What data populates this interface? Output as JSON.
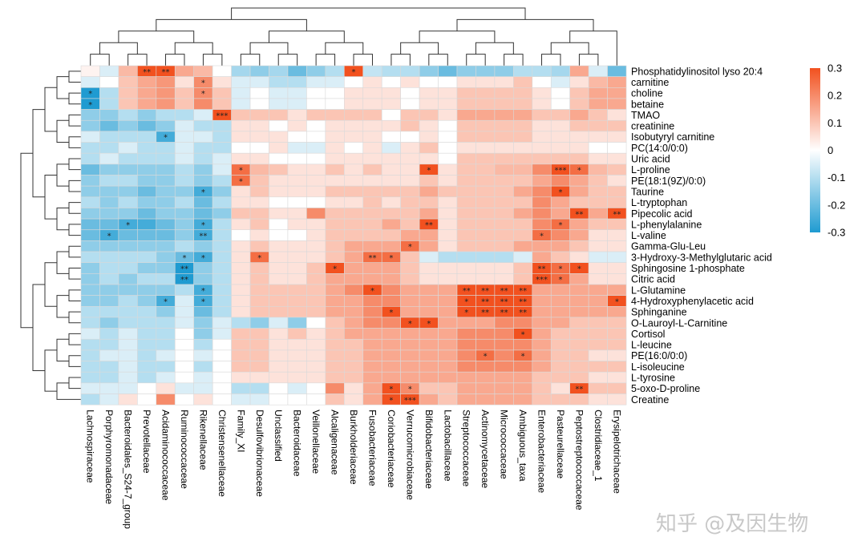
{
  "chart_data": {
    "type": "heatmap",
    "title": "",
    "xlabel": "",
    "ylabel": "",
    "rows": [
      "Phosphatidylinositol lyso 20:4",
      "carnitine",
      "choline",
      "betaine",
      "TMAO",
      "creatinine",
      "Isobutyryl carnitine",
      "PC(14:0/0:0)",
      "Uric acid",
      "L-proline",
      "PE(18:1(9Z)/0:0)",
      "Taurine",
      "L-tryptophan",
      "Pipecolic acid",
      "L-phenylalanine",
      "L-valine",
      "Gamma-Glu-Leu",
      "3-Hydroxy-3-Methylglutaric acid",
      "Sphingosine 1-phosphate",
      "Citric acid",
      "L-Glutamine",
      "4-Hydroxyphenylacetic acid",
      "Sphinganine",
      "O-Lauroyl-L-Carnitine",
      "Cortisol",
      "L-leucine",
      "PE(16:0/0:0)",
      "L-isoleucine",
      "L-tyrosine",
      "5-oxo-D-proline",
      "Creatine"
    ],
    "columns": [
      "Lachnospiraceae",
      "Porphyromonadaceae",
      "Bacteroidales_S24-7_group",
      "Prevotellaceae",
      "Acidaminococcaceae",
      "Ruminococcaceae",
      "Rikenellaceae",
      "Christensenellaceae",
      "Family_XI",
      "Desulfovibrionaceae",
      "Unclassified",
      "Bacteroidaceae",
      "Veillonellaceae",
      "Alcaligenaceae",
      "Burkholderiaceae",
      "Fusobacteriaceae",
      "Coriobacteriaceae",
      "Verrucomicrobiaceae",
      "Bifidobacteriaceae",
      "Lactobacillaceae",
      "Streptococcaceae",
      "Actinomycetaceae",
      "Micrococcaceae",
      "Ambiguous_taxa",
      "Enterobacteriaceae",
      "Pasteurellaceae",
      "Peptostreptococcaceae",
      "Clostridiaceae_1",
      "Erysipelotrichaceae"
    ],
    "values": [
      [
        0.02,
        -0.05,
        0.12,
        0.3,
        0.3,
        0.15,
        0.12,
        0.0,
        -0.12,
        -0.15,
        -0.12,
        -0.2,
        -0.15,
        -0.1,
        0.3,
        -0.08,
        -0.1,
        -0.1,
        -0.15,
        -0.2,
        -0.15,
        -0.15,
        -0.15,
        -0.1,
        -0.1,
        -0.12,
        0.15,
        -0.05,
        -0.2
      ],
      [
        -0.05,
        0.0,
        0.1,
        0.15,
        0.18,
        0.05,
        0.2,
        0.05,
        -0.05,
        -0.05,
        -0.1,
        -0.1,
        -0.05,
        -0.05,
        0.0,
        0.05,
        0.0,
        0.05,
        0.0,
        0.0,
        0.05,
        0.05,
        0.05,
        0.1,
        0.0,
        -0.05,
        0.05,
        0.12,
        0.15
      ],
      [
        -0.3,
        -0.1,
        0.1,
        0.15,
        0.18,
        0.1,
        0.2,
        0.1,
        -0.05,
        0.0,
        -0.05,
        -0.05,
        0.0,
        0.0,
        0.05,
        0.05,
        0.05,
        0.0,
        0.05,
        0.05,
        0.1,
        0.1,
        0.1,
        0.1,
        0.05,
        0.0,
        0.1,
        0.15,
        0.15
      ],
      [
        -0.3,
        -0.1,
        0.1,
        0.15,
        0.18,
        0.1,
        0.2,
        0.1,
        -0.05,
        0.0,
        -0.05,
        -0.05,
        0.0,
        0.0,
        0.05,
        0.05,
        0.05,
        0.0,
        0.05,
        0.05,
        0.1,
        0.1,
        0.1,
        0.1,
        0.05,
        0.0,
        0.1,
        0.15,
        0.15
      ],
      [
        -0.15,
        -0.15,
        -0.1,
        -0.15,
        -0.1,
        -0.1,
        -0.05,
        0.3,
        0.1,
        0.1,
        0.1,
        0.05,
        0.1,
        0.1,
        0.1,
        0.1,
        0.0,
        0.1,
        0.1,
        0.05,
        0.15,
        0.15,
        0.15,
        0.15,
        0.1,
        0.1,
        0.15,
        0.1,
        0.05
      ],
      [
        -0.15,
        -0.2,
        -0.15,
        -0.2,
        -0.15,
        -0.05,
        -0.1,
        -0.1,
        0.05,
        0.05,
        0.0,
        0.05,
        0.0,
        0.05,
        0.05,
        0.05,
        0.05,
        0.1,
        0.05,
        0.0,
        0.1,
        0.1,
        0.1,
        0.1,
        0.05,
        0.05,
        0.1,
        0.1,
        0.1
      ],
      [
        -0.05,
        -0.1,
        -0.1,
        -0.1,
        -0.25,
        -0.05,
        -0.05,
        -0.1,
        0.05,
        0.05,
        0.05,
        0.0,
        0.0,
        0.05,
        0.05,
        0.05,
        0.0,
        0.0,
        0.05,
        0.0,
        0.1,
        0.1,
        0.1,
        0.1,
        0.05,
        0.05,
        0.05,
        0.05,
        0.05
      ],
      [
        -0.1,
        -0.1,
        -0.05,
        -0.1,
        -0.1,
        -0.05,
        -0.1,
        -0.1,
        0.0,
        0.0,
        0.05,
        -0.05,
        -0.05,
        0.05,
        0.0,
        0.05,
        -0.05,
        0.05,
        0.1,
        0.0,
        0.05,
        0.05,
        0.05,
        0.05,
        0.05,
        0.05,
        0.05,
        0.0,
        0.0
      ],
      [
        -0.1,
        -0.05,
        -0.1,
        -0.1,
        -0.1,
        -0.05,
        -0.1,
        -0.05,
        0.05,
        0.05,
        0.0,
        0.0,
        0.0,
        0.05,
        0.05,
        0.05,
        0.05,
        0.05,
        0.05,
        0.0,
        0.1,
        0.1,
        0.1,
        0.1,
        0.1,
        0.1,
        0.1,
        0.05,
        0.05
      ],
      [
        -0.2,
        -0.15,
        -0.15,
        -0.15,
        -0.15,
        -0.1,
        -0.15,
        -0.05,
        0.25,
        0.12,
        0.1,
        0.05,
        0.05,
        0.1,
        0.05,
        0.1,
        0.05,
        0.05,
        0.3,
        0.05,
        0.1,
        0.1,
        0.12,
        0.12,
        0.2,
        0.3,
        0.25,
        0.12,
        0.1
      ],
      [
        -0.15,
        -0.1,
        -0.1,
        -0.15,
        -0.15,
        -0.1,
        -0.15,
        -0.1,
        0.25,
        0.1,
        0.05,
        0.05,
        0.05,
        0.05,
        0.05,
        0.05,
        0.05,
        0.05,
        0.1,
        0.05,
        0.1,
        0.1,
        0.1,
        0.1,
        0.15,
        0.2,
        0.15,
        0.1,
        0.05
      ],
      [
        -0.15,
        -0.15,
        -0.15,
        -0.2,
        -0.15,
        -0.15,
        -0.25,
        -0.15,
        0.05,
        0.1,
        0.05,
        0.05,
        0.05,
        0.1,
        0.1,
        0.1,
        0.1,
        0.1,
        0.15,
        0.1,
        0.1,
        0.1,
        0.1,
        0.15,
        0.2,
        0.3,
        0.15,
        0.1,
        0.1
      ],
      [
        -0.1,
        -0.15,
        -0.1,
        -0.15,
        -0.15,
        -0.1,
        -0.2,
        -0.1,
        0.05,
        0.05,
        0.0,
        0.0,
        0.0,
        0.05,
        0.05,
        0.1,
        0.05,
        0.1,
        0.1,
        0.05,
        0.1,
        0.1,
        0.1,
        0.1,
        0.2,
        0.15,
        0.1,
        0.1,
        0.1
      ],
      [
        -0.15,
        -0.15,
        -0.15,
        -0.2,
        -0.15,
        -0.15,
        -0.2,
        -0.15,
        0.1,
        0.1,
        0.05,
        0.05,
        0.2,
        0.1,
        0.1,
        0.1,
        0.1,
        0.1,
        0.15,
        0.05,
        0.1,
        0.1,
        0.1,
        0.15,
        0.2,
        0.15,
        0.3,
        0.15,
        0.3
      ],
      [
        -0.2,
        -0.2,
        -0.25,
        -0.25,
        -0.2,
        -0.15,
        -0.25,
        -0.1,
        0.05,
        0.1,
        0.0,
        0.05,
        0.05,
        0.1,
        0.1,
        0.1,
        0.15,
        0.1,
        0.3,
        0.05,
        0.1,
        0.1,
        0.1,
        0.1,
        0.2,
        0.25,
        0.15,
        0.1,
        0.1
      ],
      [
        -0.2,
        -0.25,
        -0.2,
        -0.2,
        -0.2,
        -0.15,
        -0.25,
        -0.1,
        0.0,
        0.05,
        0.0,
        0.0,
        0.05,
        0.1,
        0.1,
        0.1,
        0.1,
        0.15,
        0.15,
        0.05,
        0.1,
        0.1,
        0.1,
        0.1,
        0.25,
        0.2,
        0.15,
        0.05,
        0.05
      ],
      [
        -0.15,
        -0.15,
        -0.15,
        -0.15,
        -0.15,
        -0.1,
        -0.15,
        -0.1,
        0.05,
        0.1,
        0.05,
        0.05,
        0.05,
        0.1,
        0.15,
        0.15,
        0.15,
        0.25,
        0.15,
        0.05,
        0.1,
        0.1,
        0.1,
        0.15,
        0.15,
        0.15,
        0.1,
        0.05,
        0.05
      ],
      [
        -0.1,
        -0.1,
        -0.1,
        -0.1,
        -0.15,
        -0.2,
        -0.25,
        -0.1,
        0.05,
        0.25,
        0.05,
        0.05,
        0.05,
        0.1,
        0.15,
        0.25,
        0.25,
        0.1,
        -0.05,
        -0.1,
        -0.1,
        -0.1,
        -0.1,
        -0.05,
        0.15,
        0.1,
        0.05,
        -0.05,
        -0.05
      ],
      [
        -0.15,
        -0.1,
        -0.1,
        -0.15,
        -0.15,
        -0.3,
        -0.15,
        -0.1,
        0.05,
        0.1,
        0.05,
        0.05,
        0.1,
        0.3,
        0.15,
        0.15,
        0.15,
        0.1,
        0.05,
        0.05,
        0.05,
        0.05,
        0.05,
        0.1,
        0.3,
        0.25,
        0.3,
        0.05,
        0.05
      ],
      [
        -0.15,
        -0.1,
        -0.15,
        -0.1,
        -0.1,
        -0.3,
        -0.15,
        -0.1,
        0.05,
        0.1,
        0.05,
        0.05,
        0.1,
        0.15,
        0.15,
        0.15,
        0.15,
        0.1,
        0.05,
        0.05,
        0.05,
        0.05,
        0.05,
        0.1,
        0.3,
        0.25,
        0.15,
        0.05,
        0.05
      ],
      [
        -0.15,
        -0.15,
        -0.15,
        -0.15,
        -0.15,
        -0.1,
        -0.25,
        -0.1,
        0.05,
        0.1,
        0.1,
        0.1,
        0.1,
        0.15,
        0.2,
        0.3,
        0.2,
        0.15,
        0.15,
        0.15,
        0.3,
        0.3,
        0.3,
        0.3,
        0.15,
        0.15,
        0.15,
        0.15,
        0.15
      ],
      [
        -0.15,
        -0.15,
        -0.1,
        -0.15,
        -0.25,
        -0.05,
        -0.25,
        -0.1,
        0.05,
        0.1,
        0.1,
        0.1,
        0.1,
        0.15,
        0.15,
        0.2,
        0.2,
        0.15,
        0.15,
        0.15,
        0.3,
        0.3,
        0.3,
        0.3,
        0.15,
        0.15,
        0.15,
        0.15,
        0.3
      ],
      [
        -0.1,
        -0.1,
        -0.1,
        -0.1,
        -0.15,
        -0.05,
        -0.2,
        -0.1,
        0.05,
        0.1,
        0.1,
        0.1,
        0.1,
        0.15,
        0.15,
        0.2,
        0.3,
        0.15,
        0.15,
        0.15,
        0.3,
        0.3,
        0.3,
        0.3,
        0.15,
        0.15,
        0.15,
        0.15,
        0.15
      ],
      [
        -0.1,
        -0.15,
        -0.1,
        -0.1,
        -0.1,
        -0.05,
        -0.15,
        -0.05,
        -0.1,
        -0.15,
        -0.05,
        -0.15,
        0.0,
        0.1,
        0.15,
        0.2,
        0.2,
        0.3,
        0.3,
        0.15,
        0.15,
        0.15,
        0.2,
        0.2,
        0.15,
        0.15,
        0.1,
        0.1,
        0.1
      ],
      [
        -0.05,
        -0.1,
        -0.05,
        -0.1,
        -0.1,
        0.0,
        -0.15,
        -0.05,
        0.1,
        0.1,
        0.05,
        0.1,
        0.05,
        0.1,
        0.15,
        0.15,
        0.15,
        0.15,
        0.15,
        0.15,
        0.2,
        0.2,
        0.2,
        0.3,
        0.15,
        0.1,
        0.1,
        0.1,
        0.1
      ],
      [
        -0.1,
        -0.1,
        -0.05,
        -0.1,
        -0.1,
        0.0,
        -0.1,
        0.0,
        0.1,
        0.1,
        0.05,
        0.05,
        0.05,
        0.1,
        0.1,
        0.15,
        0.15,
        0.15,
        0.15,
        0.15,
        0.2,
        0.2,
        0.2,
        0.2,
        0.15,
        0.1,
        0.1,
        0.1,
        0.1
      ],
      [
        -0.1,
        -0.05,
        -0.05,
        -0.1,
        -0.05,
        0.0,
        -0.05,
        0.0,
        0.1,
        0.1,
        0.05,
        0.05,
        0.05,
        0.1,
        0.1,
        0.15,
        0.15,
        0.15,
        0.15,
        0.15,
        0.2,
        0.25,
        0.2,
        0.25,
        0.15,
        0.1,
        0.1,
        0.05,
        0.05
      ],
      [
        -0.1,
        -0.1,
        -0.05,
        -0.1,
        -0.1,
        0.0,
        -0.1,
        0.0,
        0.1,
        0.1,
        0.05,
        0.05,
        0.05,
        0.1,
        0.1,
        0.15,
        0.15,
        0.15,
        0.15,
        0.15,
        0.2,
        0.2,
        0.2,
        0.2,
        0.15,
        0.1,
        0.1,
        0.1,
        0.1
      ],
      [
        -0.1,
        -0.1,
        -0.05,
        -0.1,
        -0.05,
        0.0,
        -0.05,
        0.0,
        0.05,
        0.05,
        0.05,
        0.05,
        0.05,
        0.1,
        0.1,
        0.15,
        0.15,
        0.15,
        0.15,
        0.15,
        0.15,
        0.15,
        0.15,
        0.15,
        0.1,
        0.1,
        0.1,
        0.05,
        0.05
      ],
      [
        -0.05,
        -0.05,
        -0.05,
        0.0,
        0.05,
        -0.05,
        -0.05,
        0.0,
        -0.1,
        -0.1,
        0.0,
        -0.05,
        0.0,
        0.2,
        0.05,
        0.15,
        0.3,
        0.2,
        0.1,
        0.1,
        0.15,
        0.15,
        0.15,
        0.15,
        0.1,
        0.05,
        0.3,
        0.1,
        0.1
      ],
      [
        -0.1,
        -0.05,
        0.05,
        0.0,
        0.2,
        0.0,
        0.05,
        0.0,
        -0.05,
        -0.05,
        0.0,
        0.0,
        0.0,
        0.1,
        0.05,
        0.15,
        0.3,
        0.3,
        0.15,
        0.1,
        0.15,
        0.15,
        0.15,
        0.15,
        0.1,
        0.1,
        0.1,
        0.05,
        0.05
      ]
    ],
    "stars": [
      [
        0,
        3,
        "**"
      ],
      [
        0,
        4,
        "**"
      ],
      [
        0,
        14,
        "*"
      ],
      [
        1,
        6,
        "*"
      ],
      [
        2,
        0,
        "*"
      ],
      [
        2,
        6,
        "*"
      ],
      [
        3,
        0,
        "*"
      ],
      [
        4,
        7,
        "***"
      ],
      [
        6,
        4,
        "*"
      ],
      [
        9,
        8,
        "*"
      ],
      [
        9,
        18,
        "*"
      ],
      [
        9,
        25,
        "***"
      ],
      [
        9,
        26,
        "*"
      ],
      [
        10,
        8,
        "*"
      ],
      [
        11,
        6,
        "*"
      ],
      [
        11,
        25,
        "*"
      ],
      [
        13,
        26,
        "**"
      ],
      [
        13,
        28,
        "**"
      ],
      [
        14,
        2,
        "*"
      ],
      [
        14,
        6,
        "*"
      ],
      [
        14,
        18,
        "**"
      ],
      [
        14,
        25,
        "*"
      ],
      [
        15,
        1,
        "*"
      ],
      [
        15,
        6,
        "**"
      ],
      [
        15,
        24,
        "*"
      ],
      [
        16,
        17,
        "*"
      ],
      [
        17,
        5,
        "*"
      ],
      [
        17,
        6,
        "*"
      ],
      [
        17,
        9,
        "*"
      ],
      [
        17,
        15,
        "**"
      ],
      [
        17,
        16,
        "*"
      ],
      [
        18,
        5,
        "**"
      ],
      [
        18,
        13,
        "*"
      ],
      [
        18,
        24,
        "**"
      ],
      [
        18,
        25,
        "*"
      ],
      [
        18,
        26,
        "*"
      ],
      [
        19,
        5,
        "**"
      ],
      [
        19,
        24,
        "***"
      ],
      [
        19,
        25,
        "*"
      ],
      [
        20,
        6,
        "*"
      ],
      [
        20,
        15,
        "*"
      ],
      [
        20,
        20,
        "**"
      ],
      [
        20,
        21,
        "**"
      ],
      [
        20,
        22,
        "**"
      ],
      [
        20,
        23,
        "**"
      ],
      [
        21,
        4,
        "*"
      ],
      [
        21,
        6,
        "*"
      ],
      [
        21,
        20,
        "*"
      ],
      [
        21,
        21,
        "**"
      ],
      [
        21,
        22,
        "**"
      ],
      [
        21,
        23,
        "**"
      ],
      [
        21,
        28,
        "*"
      ],
      [
        22,
        16,
        "*"
      ],
      [
        22,
        20,
        "*"
      ],
      [
        22,
        21,
        "**"
      ],
      [
        22,
        22,
        "**"
      ],
      [
        22,
        23,
        "**"
      ],
      [
        23,
        17,
        "*"
      ],
      [
        23,
        18,
        "*"
      ],
      [
        24,
        23,
        "*"
      ],
      [
        26,
        21,
        "*"
      ],
      [
        26,
        23,
        "*"
      ],
      [
        29,
        16,
        "*"
      ],
      [
        29,
        17,
        "*"
      ],
      [
        29,
        26,
        "**"
      ],
      [
        30,
        16,
        "*"
      ],
      [
        30,
        17,
        "***"
      ]
    ],
    "colorbar": {
      "ticks": [
        "0.3",
        "0.2",
        "0.1",
        "0",
        "-0.1",
        "-0.2",
        "-0.3"
      ],
      "range": [
        -0.3,
        0.3
      ],
      "colors": {
        "low": "#1f9bd1",
        "mid": "#ffffff",
        "high": "#f2511f"
      }
    },
    "grid": true
  },
  "watermark": "知乎 @及因生物"
}
